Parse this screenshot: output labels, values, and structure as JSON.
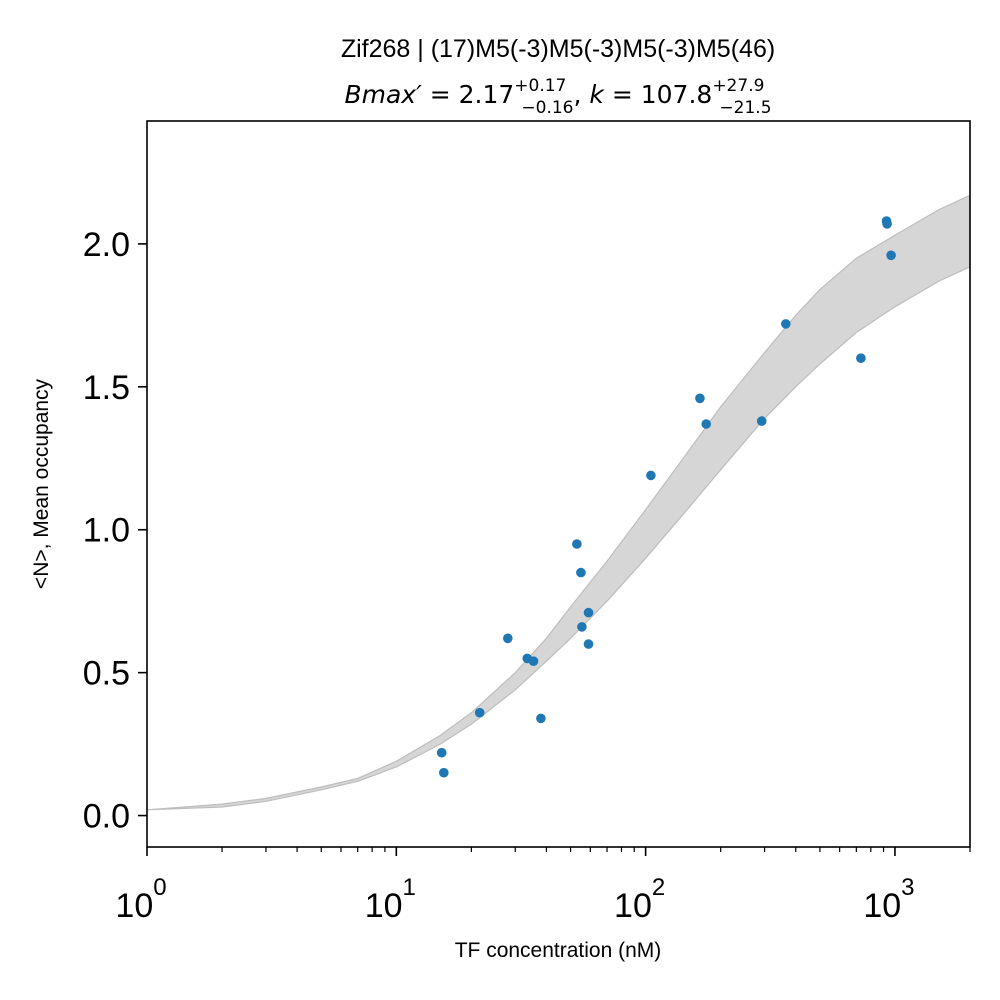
{
  "chart_data": {
    "type": "scatter",
    "title": "Zif268 | (17)M5(-3)M5(-3)M5(-3)M5(46)",
    "subtitle": {
      "bmax_symbol": "Bmax′",
      "bmax_value": "2.17",
      "bmax_plus": "+0.17",
      "bmax_minus": "−0.16",
      "k_symbol": "k",
      "k_value": "107.8",
      "k_plus": "+27.9",
      "k_minus": "−21.5"
    },
    "xlabel": "TF concentration (nM)",
    "ylabel": "<N>, Mean occupancy",
    "xscale": "log",
    "xlim": [
      1,
      2000
    ],
    "ylim": [
      -0.11,
      2.43
    ],
    "x_ticks": [
      {
        "value": 1,
        "base": "10",
        "exp": "0"
      },
      {
        "value": 10,
        "base": "10",
        "exp": "1"
      },
      {
        "value": 100,
        "base": "10",
        "exp": "2"
      },
      {
        "value": 1000,
        "base": "10",
        "exp": "3"
      }
    ],
    "y_ticks": [
      {
        "value": 0.0,
        "label": "0.0"
      },
      {
        "value": 0.5,
        "label": "0.5"
      },
      {
        "value": 1.0,
        "label": "1.0"
      },
      {
        "value": 1.5,
        "label": "1.5"
      },
      {
        "value": 2.0,
        "label": "2.0"
      }
    ],
    "grid": false,
    "series": [
      {
        "color": "#1f77b4",
        "points": [
          {
            "x": 15.2,
            "y": 0.22
          },
          {
            "x": 15.5,
            "y": 0.15
          },
          {
            "x": 21.6,
            "y": 0.36
          },
          {
            "x": 28.0,
            "y": 0.62
          },
          {
            "x": 33.5,
            "y": 0.55
          },
          {
            "x": 35.5,
            "y": 0.54
          },
          {
            "x": 38.0,
            "y": 0.34
          },
          {
            "x": 53.0,
            "y": 0.95
          },
          {
            "x": 55.0,
            "y": 0.85
          },
          {
            "x": 55.5,
            "y": 0.66
          },
          {
            "x": 59.0,
            "y": 0.71
          },
          {
            "x": 59.0,
            "y": 0.6
          },
          {
            "x": 105.0,
            "y": 1.19
          },
          {
            "x": 165.0,
            "y": 1.46
          },
          {
            "x": 175.0,
            "y": 1.37
          },
          {
            "x": 292.0,
            "y": 1.38
          },
          {
            "x": 365.0,
            "y": 1.72
          },
          {
            "x": 730.0,
            "y": 1.6
          },
          {
            "x": 925.0,
            "y": 2.08
          },
          {
            "x": 930.0,
            "y": 2.07
          },
          {
            "x": 965.0,
            "y": 1.96
          }
        ]
      }
    ],
    "confidence_band": {
      "color": "#d6d6d6",
      "edge_color": "#bdbdbd",
      "x": [
        1,
        2,
        3,
        5,
        7,
        10,
        15,
        20,
        30,
        40,
        50,
        70,
        100,
        150,
        200,
        300,
        400,
        500,
        700,
        1000,
        1500,
        2000
      ],
      "lower": [
        0.02,
        0.03,
        0.05,
        0.09,
        0.12,
        0.17,
        0.25,
        0.32,
        0.44,
        0.54,
        0.62,
        0.75,
        0.9,
        1.08,
        1.21,
        1.39,
        1.5,
        1.58,
        1.69,
        1.78,
        1.87,
        1.92
      ],
      "upper": [
        0.02,
        0.04,
        0.06,
        0.1,
        0.13,
        0.19,
        0.28,
        0.36,
        0.5,
        0.62,
        0.73,
        0.89,
        1.07,
        1.28,
        1.43,
        1.62,
        1.75,
        1.84,
        1.95,
        2.03,
        2.12,
        2.17
      ]
    }
  }
}
